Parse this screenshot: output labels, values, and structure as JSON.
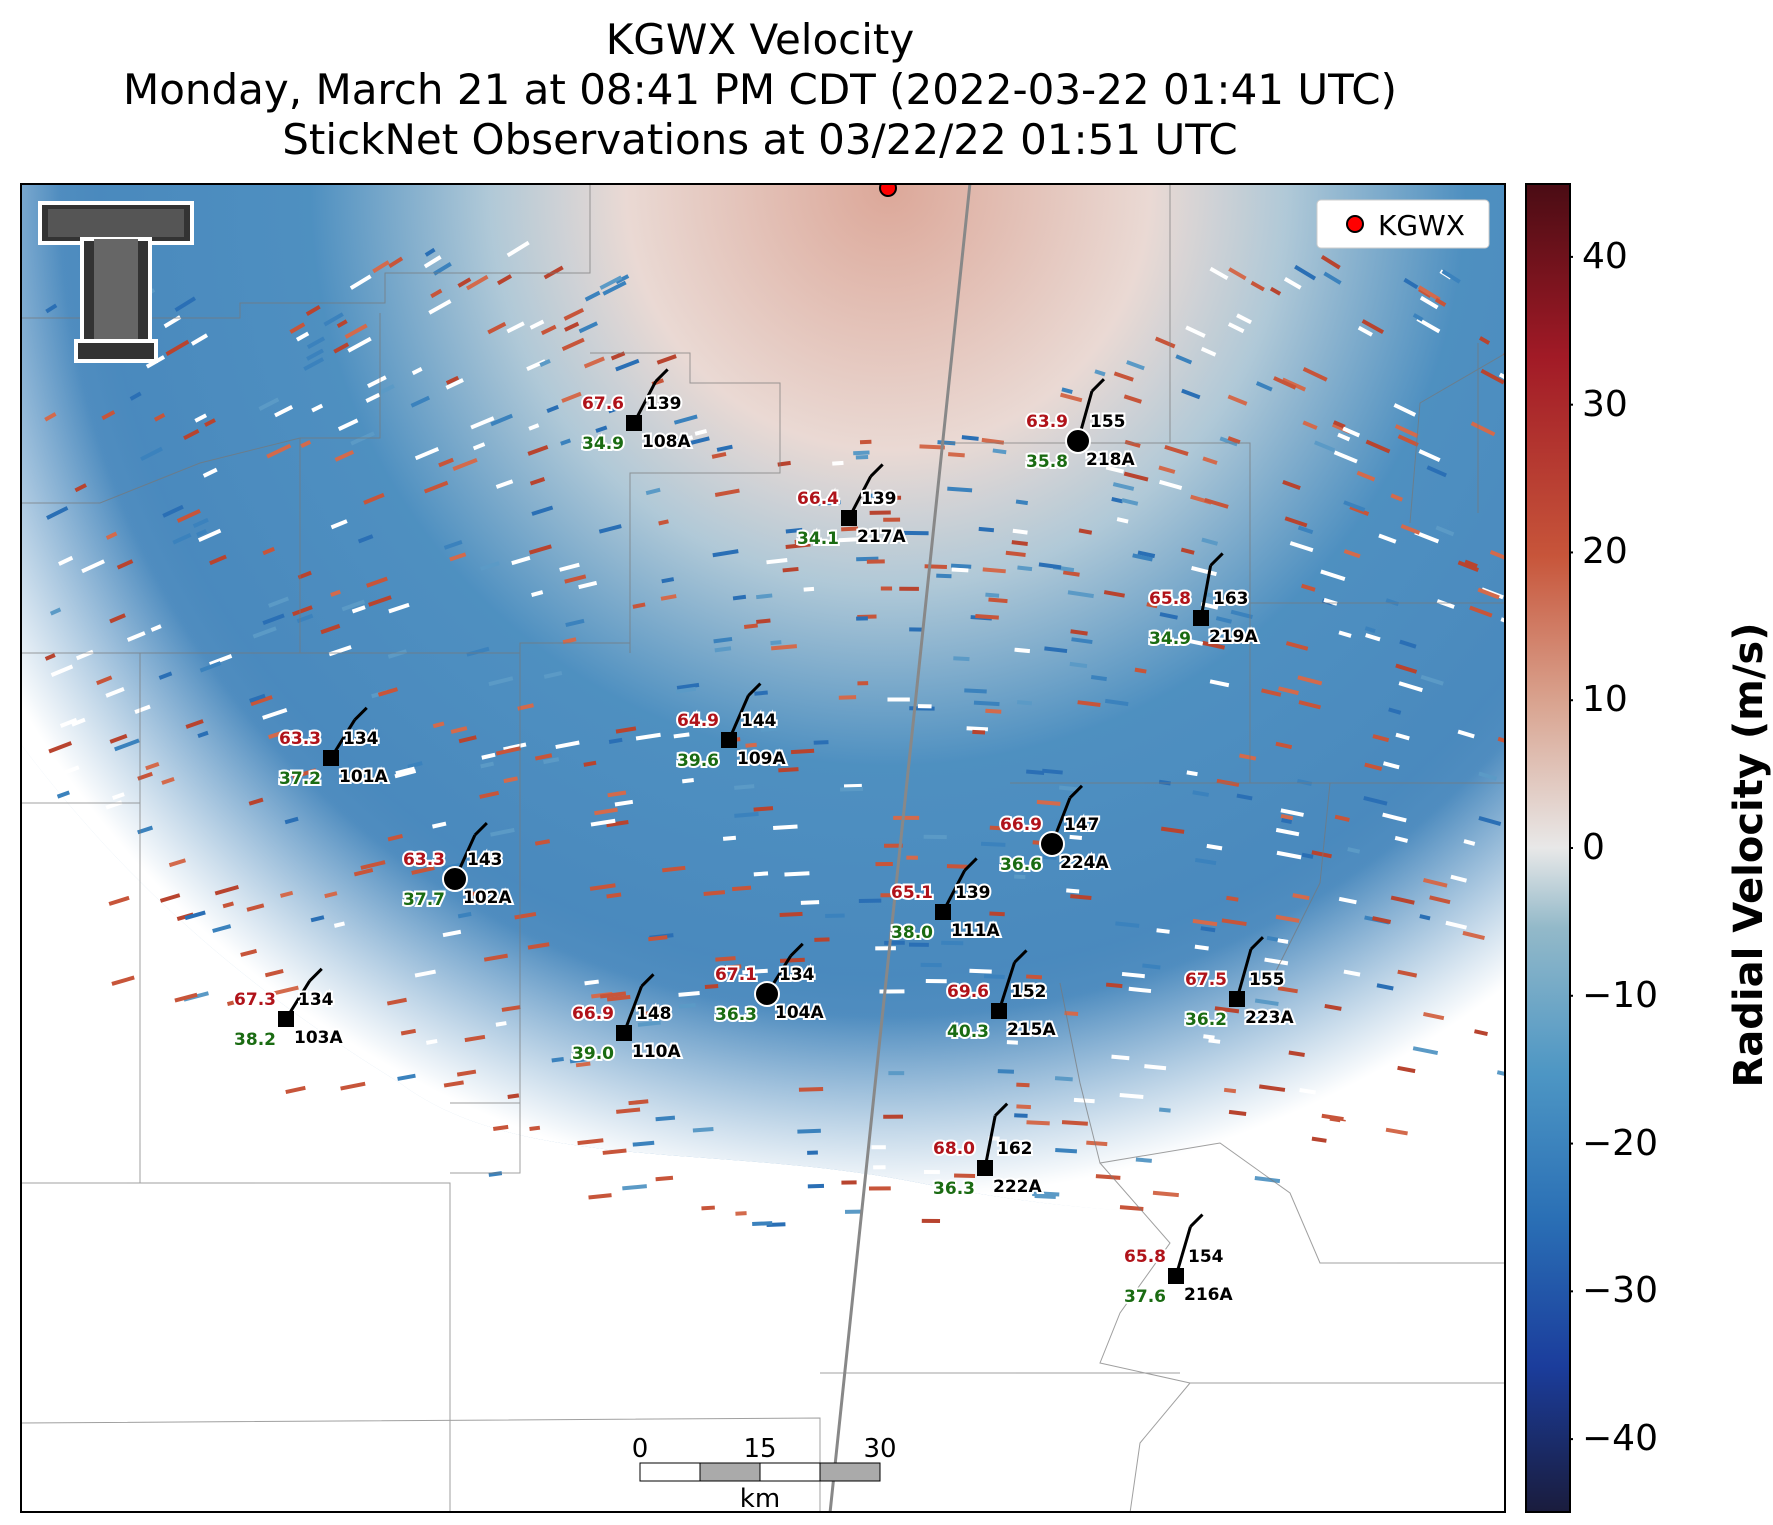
{
  "title": {
    "line1": "KGWX Velocity",
    "line2": "Monday, March 21 at 08:41 PM CDT (2022-03-22 01:41 UTC)",
    "line3": "StickNet Observations at 03/22/22 01:51 UTC"
  },
  "legend": {
    "label": "KGWX",
    "marker_color": "#ff0000"
  },
  "colorbar": {
    "title": "Radial Velocity (m/s)",
    "ticks": [
      "40",
      "30",
      "20",
      "10",
      "0",
      "−10",
      "−20",
      "−30",
      "−40"
    ],
    "range": [
      -45,
      45
    ],
    "colors": [
      "#1a1c3d",
      "#1b3d9c",
      "#2a6fb5",
      "#4d96c4",
      "#93b9c9",
      "#e8e8e8",
      "#d9a38f",
      "#c7553a",
      "#a11a26",
      "#4a0c14"
    ]
  },
  "scale_bar": {
    "ticks": [
      "0",
      "15",
      "30"
    ],
    "unit": "km"
  },
  "stations": [
    {
      "id": "108A",
      "temp": "67.6",
      "dew": "34.9",
      "dir": "139"
    },
    {
      "id": "218A",
      "temp": "63.9",
      "dew": "35.8",
      "dir": "155"
    },
    {
      "id": "217A",
      "temp": "66.4",
      "dew": "34.1",
      "dir": "139"
    },
    {
      "id": "219A",
      "temp": "65.8",
      "dew": "34.9",
      "dir": "163"
    },
    {
      "id": "101A",
      "temp": "63.3",
      "dew": "37.2",
      "dir": "134"
    },
    {
      "id": "109A",
      "temp": "64.9",
      "dew": "39.6",
      "dir": "144"
    },
    {
      "id": "224A",
      "temp": "66.9",
      "dew": "36.6",
      "dir": "147"
    },
    {
      "id": "102A",
      "temp": "63.3",
      "dew": "37.7",
      "dir": "143"
    },
    {
      "id": "111A",
      "temp": "65.1",
      "dew": "38.0",
      "dir": "139"
    },
    {
      "id": "104A",
      "temp": "67.1",
      "dew": "36.3",
      "dir": "134"
    },
    {
      "id": "103A",
      "temp": "67.3",
      "dew": "38.2",
      "dir": "134"
    },
    {
      "id": "110A",
      "temp": "66.9",
      "dew": "39.0",
      "dir": "148"
    },
    {
      "id": "215A",
      "temp": "69.6",
      "dew": "40.3",
      "dir": "152"
    },
    {
      "id": "223A",
      "temp": "67.5",
      "dew": "36.2",
      "dir": "155"
    },
    {
      "id": "222A",
      "temp": "68.0",
      "dew": "36.3",
      "dir": "162"
    },
    {
      "id": "216A",
      "temp": "65.8",
      "dew": "37.6",
      "dir": "154"
    }
  ]
}
